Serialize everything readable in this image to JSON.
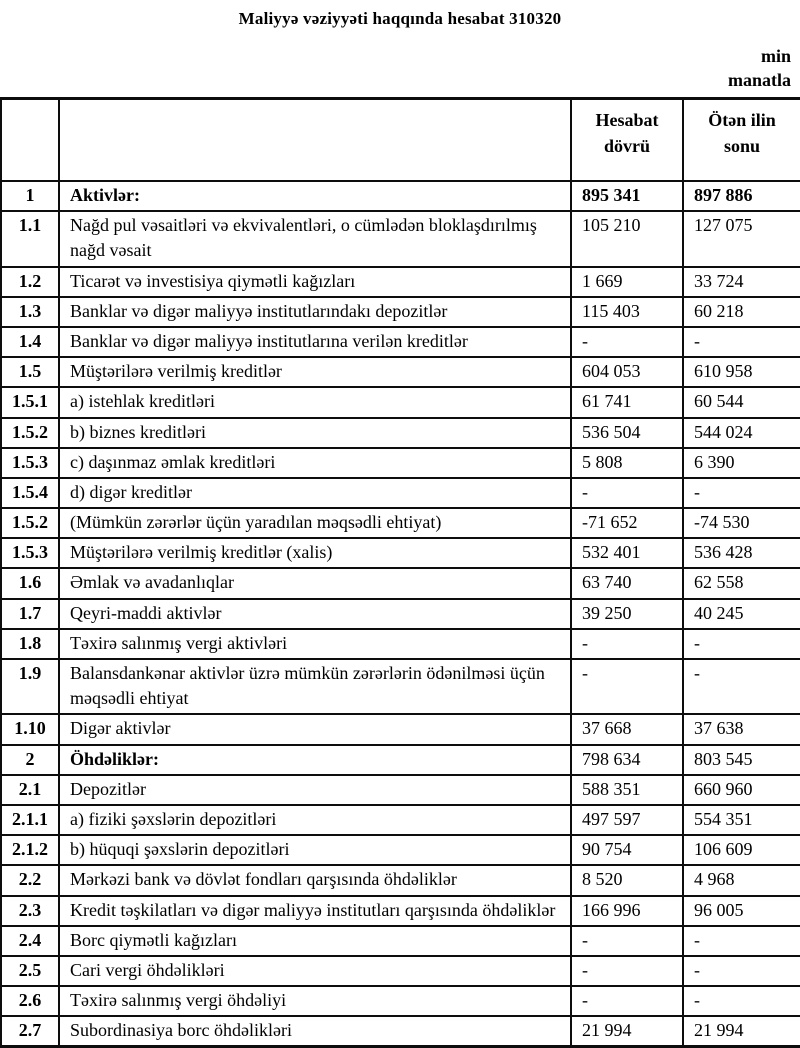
{
  "title": "Maliyyə vəziyyəti haqqında hesabat 310320",
  "unit_label": "min manatla",
  "table": {
    "columns": [
      "",
      "",
      "Hesabat dövrü",
      "Ötən ilin sonu"
    ],
    "rows": [
      {
        "no": "1",
        "label": "Aktivlər:",
        "current": "895 341",
        "previous": "897 886",
        "bold_label": true,
        "bold_values": true
      },
      {
        "no": "1.1",
        "label": "Nağd pul vəsaitləri və  ekvivalentləri, o cümlədən bloklaşdırılmış nağd vəsait",
        "current": "105 210",
        "previous": "127 075"
      },
      {
        "no": "1.2",
        "label": "Ticarət və investisiya qiymətli kağızları",
        "current": "1 669",
        "previous": "33 724"
      },
      {
        "no": "1.3",
        "label": "Banklar və digər maliyyə institutlarındakı depozitlər",
        "current": "115 403",
        "previous": "60 218"
      },
      {
        "no": "1.4",
        "label": "Banklar və digər maliyyə institutlarına verilən kreditlər",
        "current": "-",
        "previous": "-"
      },
      {
        "no": "1.5",
        "label": "Müştərilərə verilmiş kreditlər",
        "current": "604 053",
        "previous": "610 958"
      },
      {
        "no": "1.5.1",
        "label": "a) istehlak kreditləri",
        "current": "61 741",
        "previous": "60 544"
      },
      {
        "no": "1.5.2",
        "label": "b) biznes kreditləri",
        "current": "536 504",
        "previous": "544 024"
      },
      {
        "no": "1.5.3",
        "label": "c) daşınmaz əmlak kreditləri",
        "current": "5 808",
        "previous": "6 390"
      },
      {
        "no": "1.5.4",
        "label": "d) digər kreditlər",
        "current": "-",
        "previous": "-"
      },
      {
        "no": "1.5.2",
        "label": "(Mümkün zərərlər üçün yaradılan məqsədli ehtiyat)",
        "current": "-71 652",
        "previous": "-74 530"
      },
      {
        "no": "1.5.3",
        "label": "Müştərilərə verilmiş kreditlər (xalis)",
        "current": "532 401",
        "previous": "536 428"
      },
      {
        "no": "1.6",
        "label": "Əmlak və avadanlıqlar",
        "current": "63 740",
        "previous": "62 558"
      },
      {
        "no": "1.7",
        "label": "Qeyri-maddi aktivlər",
        "current": "39 250",
        "previous": "40 245"
      },
      {
        "no": "1.8",
        "label": "Təxirə salınmış vergi aktivləri",
        "current": "-",
        "previous": "-"
      },
      {
        "no": "1.9",
        "label": "Balansdankənar aktivlər üzrə mümkün zərərlərin ödənilməsi üçün məqsədli ehtiyat",
        "current": "-",
        "previous": "-"
      },
      {
        "no": "1.10",
        "label": "Digər aktivlər",
        "current": "37 668",
        "previous": "37 638"
      },
      {
        "no": "2",
        "label": "Öhdəliklər:",
        "current": "798 634",
        "previous": "803 545",
        "bold_label": true
      },
      {
        "no": "2.1",
        "label": "Depozitlər",
        "current": "588 351",
        "previous": "660 960"
      },
      {
        "no": "2.1.1",
        "label": "a) fiziki şəxslərin depozitləri",
        "current": "497 597",
        "previous": "554 351"
      },
      {
        "no": "2.1.2",
        "label": "b) hüquqi şəxslərin depozitləri",
        "current": "90 754",
        "previous": "106 609"
      },
      {
        "no": "2.2",
        "label": "Mərkəzi bank və dövlət fondları qarşısında öhdəliklər",
        "current": "8 520",
        "previous": "4 968"
      },
      {
        "no": "2.3",
        "label": "Kredit təşkilatları və digər maliyyə institutları qarşısında öhdəliklər",
        "current": "166 996",
        "previous": "96 005"
      },
      {
        "no": "2.4",
        "label": "Borc qiymətli kağızları",
        "current": "-",
        "previous": "-"
      },
      {
        "no": "2.5",
        "label": "Cari vergi öhdəlikləri",
        "current": "-",
        "previous": "-"
      },
      {
        "no": "2.6",
        "label": "Təxirə salınmış vergi öhdəliyi",
        "current": "-",
        "previous": "-"
      },
      {
        "no": "2.7",
        "label": "Subordinasiya borc öhdəlikləri",
        "current": "21 994",
        "previous": "21 994"
      }
    ]
  }
}
